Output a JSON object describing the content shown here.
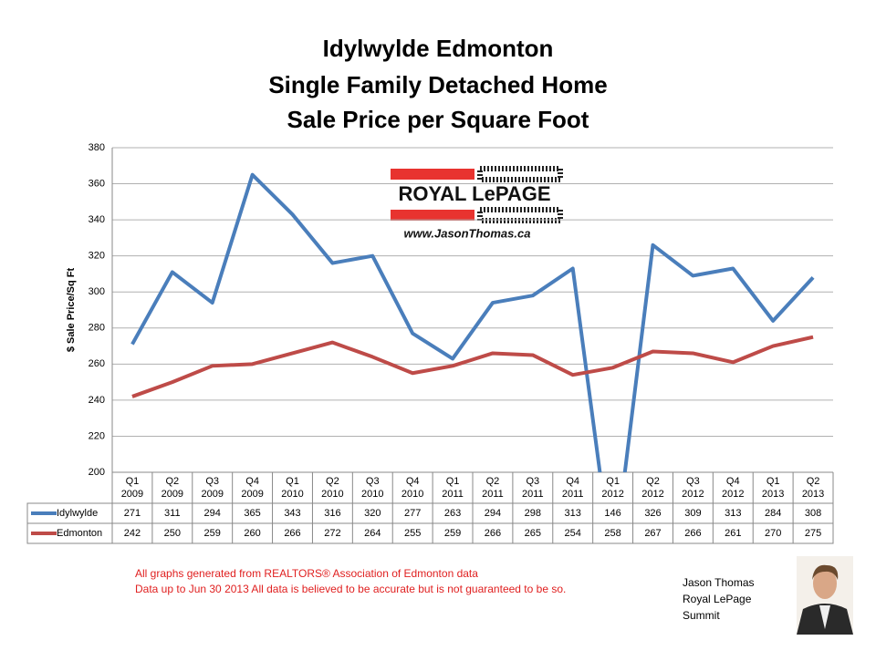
{
  "chart_data": {
    "type": "line",
    "title": [
      "Idylwylde Edmonton",
      "Single Family Detached Home",
      "Sale Price per Square Foot"
    ],
    "y_label": "$ Sale Price/Sq Ft",
    "categories": [
      [
        "Q1",
        "2009"
      ],
      [
        "Q2",
        "2009"
      ],
      [
        "Q3",
        "2009"
      ],
      [
        "Q4",
        "2009"
      ],
      [
        "Q1",
        "2010"
      ],
      [
        "Q2",
        "2010"
      ],
      [
        "Q3",
        "2010"
      ],
      [
        "Q4",
        "2010"
      ],
      [
        "Q1",
        "2011"
      ],
      [
        "Q2",
        "2011"
      ],
      [
        "Q3",
        "2011"
      ],
      [
        "Q4",
        "2011"
      ],
      [
        "Q1",
        "2012"
      ],
      [
        "Q2",
        "2012"
      ],
      [
        "Q3",
        "2012"
      ],
      [
        "Q4",
        "2012"
      ],
      [
        "Q1",
        "2013"
      ],
      [
        "Q2",
        "2013"
      ]
    ],
    "series": [
      {
        "name": "Idylwylde",
        "color": "#4a7ebb",
        "values": [
          271,
          311,
          294,
          365,
          343,
          316,
          320,
          277,
          263,
          294,
          298,
          313,
          146,
          326,
          309,
          313,
          284,
          308
        ]
      },
      {
        "name": "Edmonton",
        "color": "#be4b48",
        "values": [
          242,
          250,
          259,
          260,
          266,
          272,
          264,
          255,
          259,
          266,
          265,
          254,
          258,
          267,
          266,
          261,
          270,
          275
        ]
      }
    ],
    "ylim": [
      200,
      380
    ],
    "yticks": [
      200,
      220,
      240,
      260,
      280,
      300,
      320,
      340,
      360,
      380
    ],
    "grid": true,
    "logo": {
      "brand": "ROYAL LePAGE",
      "url": "www.JasonThomas.ca"
    },
    "notes": [
      "All graphs generated from REALTORS® Association of Edmonton data",
      "Data up to  Jun 30 2013  All data is believed to be accurate but is not guaranteed to be so."
    ],
    "signature": [
      "Jason Thomas",
      "Royal LePage",
      "Summit"
    ]
  }
}
